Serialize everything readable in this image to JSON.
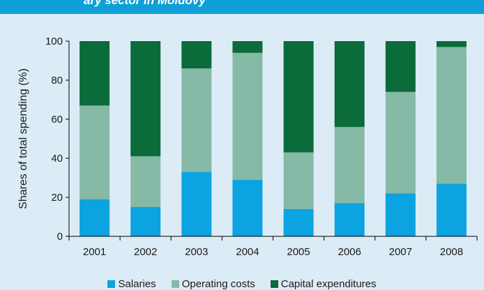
{
  "header": {
    "title_fragment": "ary sector in Moldovy"
  },
  "chart_data": {
    "type": "bar",
    "stacked": true,
    "categories": [
      "2001",
      "2002",
      "2003",
      "2004",
      "2005",
      "2006",
      "2007",
      "2008"
    ],
    "series": [
      {
        "name": "Salaries",
        "color": "#0ba3e0",
        "values": [
          19,
          15,
          33,
          29,
          14,
          17,
          22,
          27
        ]
      },
      {
        "name": "Operating costs",
        "color": "#86b9a6",
        "values": [
          48,
          26,
          53,
          65,
          29,
          39,
          52,
          70
        ]
      },
      {
        "name": "Capital expenditures",
        "color": "#0b6b3b",
        "values": [
          33,
          59,
          14,
          6,
          57,
          44,
          26,
          3
        ]
      }
    ],
    "ylabel": "Shares of  total spending (%)",
    "ylim": [
      0,
      100
    ],
    "yticks": [
      0,
      20,
      40,
      60,
      80,
      100
    ],
    "grid": false,
    "legend_position": "bottom"
  }
}
